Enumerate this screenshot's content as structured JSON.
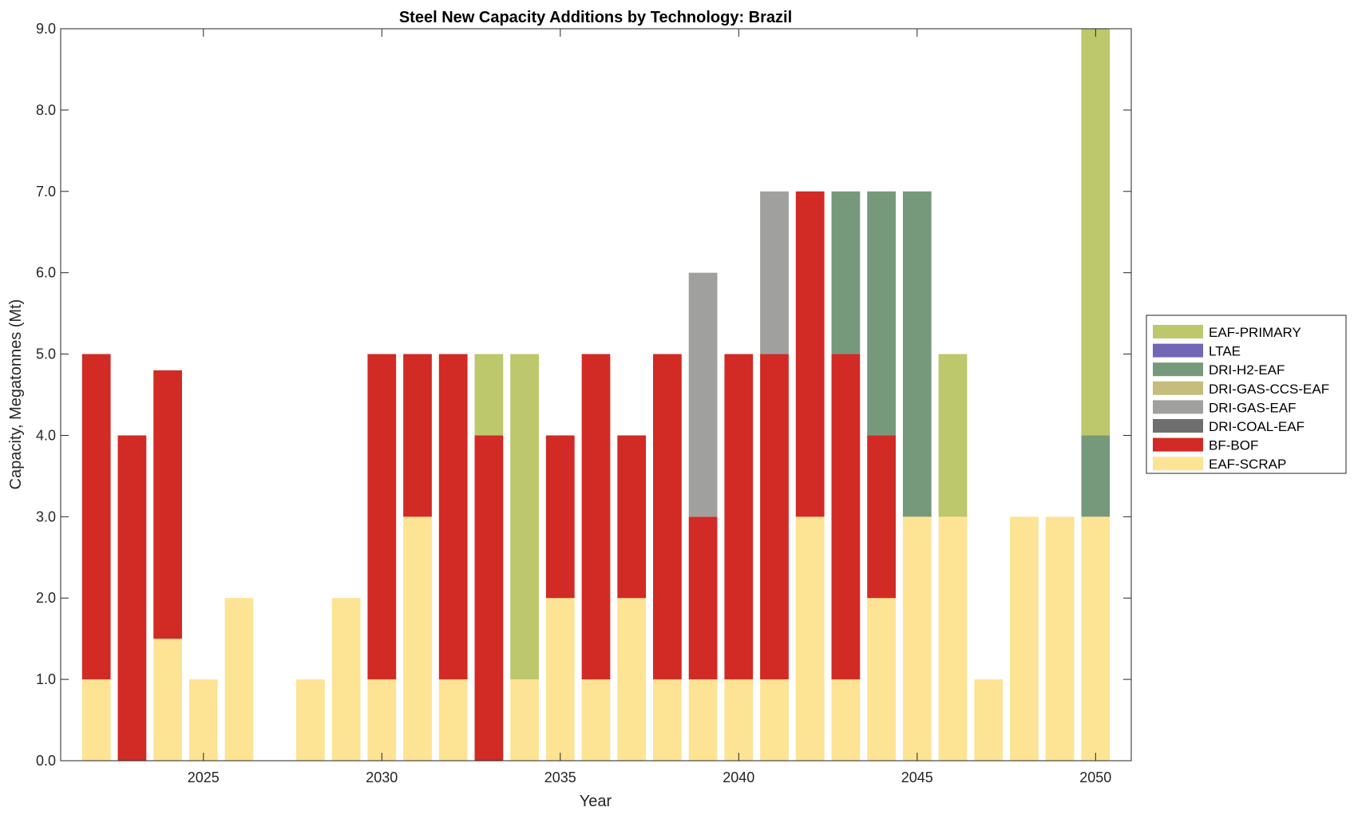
{
  "chart_data": {
    "type": "bar",
    "stacked": true,
    "title": "Steel New Capacity Additions by Technology: Brazil",
    "xlabel": "Year",
    "ylabel": "Capacity, Megatonnes (Mt)",
    "xlim": [
      2021,
      2051
    ],
    "ylim": [
      0,
      9
    ],
    "xticks": [
      2025,
      2030,
      2035,
      2040,
      2045,
      2050
    ],
    "yticks": [
      "0.0",
      "1.0",
      "2.0",
      "3.0",
      "4.0",
      "5.0",
      "6.0",
      "7.0",
      "8.0",
      "9.0"
    ],
    "legend_position": "outside-right",
    "x": [
      2022,
      2023,
      2024,
      2025,
      2026,
      2027,
      2028,
      2029,
      2030,
      2031,
      2032,
      2033,
      2034,
      2035,
      2036,
      2037,
      2038,
      2039,
      2040,
      2041,
      2042,
      2043,
      2044,
      2045,
      2046,
      2047,
      2048,
      2049,
      2050
    ],
    "series": [
      {
        "name": "EAF-SCRAP",
        "color": "#FDE394",
        "values": [
          1,
          0,
          1.5,
          1,
          2,
          0,
          1,
          2,
          1,
          3,
          1,
          0,
          1,
          2,
          1,
          2,
          1,
          1,
          1,
          1,
          3,
          1,
          2,
          3,
          3,
          1,
          3,
          3,
          3
        ]
      },
      {
        "name": "BF-BOF",
        "color": "#D22A24",
        "values": [
          4,
          4,
          3.3,
          0,
          0,
          0,
          0,
          0,
          4,
          2,
          4,
          4,
          0,
          2,
          4,
          2,
          4,
          2,
          4,
          4,
          4,
          4,
          2,
          0,
          0,
          0,
          0,
          0,
          0
        ]
      },
      {
        "name": "DRI-COAL-EAF",
        "color": "#6E6E6E",
        "values": [
          0,
          0,
          0,
          0,
          0,
          0,
          0,
          0,
          0,
          0,
          0,
          0,
          0,
          0,
          0,
          0,
          0,
          0,
          0,
          0,
          0,
          0,
          0,
          0,
          0,
          0,
          0,
          0,
          0
        ]
      },
      {
        "name": "DRI-GAS-EAF",
        "color": "#A0A09F",
        "values": [
          0,
          0,
          0,
          0,
          0,
          0,
          0,
          0,
          0,
          0,
          0,
          0,
          0,
          0,
          0,
          0,
          0,
          3,
          0,
          2,
          0,
          0,
          0,
          0,
          0,
          0,
          0,
          0,
          0
        ]
      },
      {
        "name": "DRI-GAS-CCS-EAF",
        "color": "#C6BC7C",
        "values": [
          0,
          0,
          0,
          0,
          0,
          0,
          0,
          0,
          0,
          0,
          0,
          0,
          0,
          0,
          0,
          0,
          0,
          0,
          0,
          0,
          0,
          0,
          0,
          0,
          0,
          0,
          0,
          0,
          0
        ]
      },
      {
        "name": "DRI-H2-EAF",
        "color": "#76997B",
        "values": [
          0,
          0,
          0,
          0,
          0,
          0,
          0,
          0,
          0,
          0,
          0,
          0,
          0,
          0,
          0,
          0,
          0,
          0,
          0,
          0,
          0,
          2,
          3,
          4,
          0,
          0,
          0,
          0,
          1
        ]
      },
      {
        "name": "LTAE",
        "color": "#7266B6",
        "values": [
          0,
          0,
          0,
          0,
          0,
          0,
          0,
          0,
          0,
          0,
          0,
          0,
          0,
          0,
          0,
          0,
          0,
          0,
          0,
          0,
          0,
          0,
          0,
          0,
          0,
          0,
          0,
          0,
          0
        ]
      },
      {
        "name": "EAF-PRIMARY",
        "color": "#BDC76B",
        "values": [
          0,
          0,
          0,
          0,
          0,
          0,
          0,
          0,
          0,
          0,
          0,
          1,
          4,
          0,
          0,
          0,
          0,
          0,
          0,
          0,
          0,
          0,
          0,
          0,
          2,
          0,
          0,
          0,
          5
        ]
      }
    ]
  }
}
